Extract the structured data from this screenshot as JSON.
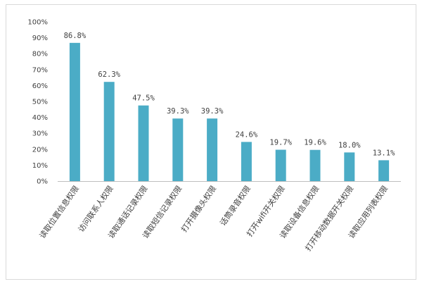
{
  "chart_data": {
    "type": "bar",
    "categories": [
      "读取位置信息权限",
      "访问联系人权限",
      "读取通话记录权限",
      "读取短信记录权限",
      "打开摄像头权限",
      "话筒录音权限",
      "打开wifi开关权限",
      "读取设备信息权限",
      "打开移动数据开关权限",
      "读取应用列表权限"
    ],
    "values": [
      86.8,
      62.3,
      47.5,
      39.3,
      39.3,
      24.6,
      19.7,
      19.6,
      18.0,
      13.1
    ],
    "data_labels": [
      "86.8%",
      "62.3%",
      "47.5%",
      "39.3%",
      "39.3%",
      "24.6%",
      "19.7%",
      "19.6%",
      "18.0%",
      "13.1%"
    ],
    "y_ticks": [
      "0%",
      "10%",
      "20%",
      "30%",
      "40%",
      "50%",
      "60%",
      "70%",
      "80%",
      "90%",
      "100%"
    ],
    "ylim": [
      0,
      100
    ],
    "bar_color": "#4BACC6",
    "grid": false,
    "legend": "none"
  }
}
